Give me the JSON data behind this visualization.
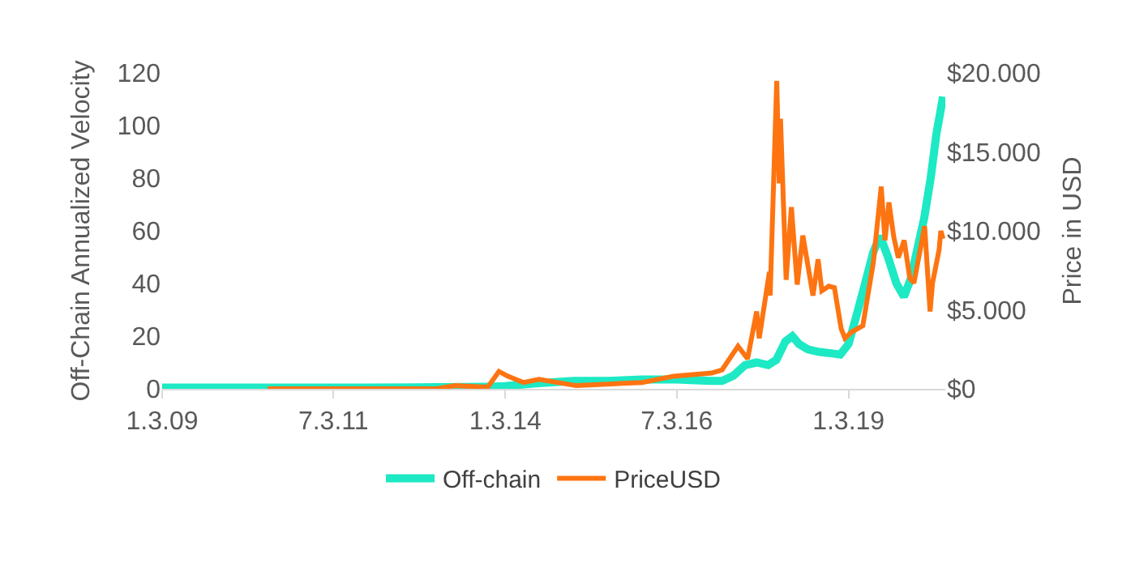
{
  "chart_data": {
    "type": "line",
    "ylabel": "Off-Chain Annualized Velocity",
    "y2label": "Price in USD",
    "xlim": [
      "2009-01-03",
      "2020-06-01"
    ],
    "xticks": [
      {
        "value": "2009-01-03",
        "label": "1.3.09"
      },
      {
        "value": "2011-07-03",
        "label": "7.3.11"
      },
      {
        "value": "2014-01-03",
        "label": "1.3.14"
      },
      {
        "value": "2016-07-03",
        "label": "7.3.16"
      },
      {
        "value": "2019-01-03",
        "label": "1.3.19"
      }
    ],
    "ylim": [
      0,
      120
    ],
    "yticks": [
      0,
      20,
      40,
      60,
      80,
      100,
      120
    ],
    "y2lim": [
      0,
      20000
    ],
    "y2ticks": [
      {
        "value": 0,
        "label": "$0"
      },
      {
        "value": 5000,
        "label": "$5.000"
      },
      {
        "value": 10000,
        "label": "$10.000"
      },
      {
        "value": 15000,
        "label": "$15.000"
      },
      {
        "value": 20000,
        "label": "$20.000"
      }
    ],
    "grid": false,
    "legend": "bottom",
    "marker": "none",
    "line_style": "solid",
    "series": [
      {
        "name": "Off-chain",
        "color": "#1de9c4",
        "x": [
          "2009-01-03",
          "2010-01-01",
          "2011-01-01",
          "2012-01-01",
          "2013-01-01",
          "2013-10-01",
          "2014-01-01",
          "2014-06-01",
          "2015-01-01",
          "2015-07-01",
          "2016-01-01",
          "2016-07-01",
          "2017-01-01",
          "2017-03-01",
          "2017-05-01",
          "2017-07-01",
          "2017-09-01",
          "2017-11-01",
          "2017-12-15",
          "2018-02-01",
          "2018-03-10",
          "2018-04-15",
          "2018-06-01",
          "2018-08-01",
          "2018-10-01",
          "2018-11-20",
          "2019-01-03",
          "2019-02-15",
          "2019-04-01",
          "2019-05-15",
          "2019-06-20",
          "2019-08-01",
          "2019-09-15",
          "2019-10-25",
          "2019-12-01",
          "2020-01-10",
          "2020-02-10",
          "2020-03-15",
          "2020-04-15",
          "2020-05-20"
        ],
        "values": [
          0.5,
          0.5,
          0.5,
          0.5,
          0.6,
          0.8,
          1,
          2,
          3,
          3,
          3.5,
          3.5,
          3,
          3,
          5,
          9,
          10,
          9,
          11,
          18,
          20,
          17,
          15,
          14,
          13.5,
          13,
          17,
          28,
          40,
          52,
          58,
          50,
          40,
          35,
          42,
          55,
          65,
          80,
          97,
          111
        ]
      },
      {
        "name": "PriceUSD",
        "color": "#fd7411",
        "axis": "y2",
        "x": [
          "2010-07-18",
          "2011-01-01",
          "2011-06-08",
          "2012-01-01",
          "2013-01-01",
          "2013-04-10",
          "2013-10-01",
          "2013-11-30",
          "2014-01-15",
          "2014-04-10",
          "2014-07-01",
          "2015-01-15",
          "2015-07-01",
          "2016-01-01",
          "2016-06-17",
          "2017-01-05",
          "2017-03-01",
          "2017-05-25",
          "2017-07-15",
          "2017-09-01",
          "2017-09-15",
          "2017-11-08",
          "2017-11-12",
          "2017-12-17",
          "2017-12-30",
          "2018-01-06",
          "2018-02-05",
          "2018-03-05",
          "2018-04-05",
          "2018-05-05",
          "2018-06-28",
          "2018-07-25",
          "2018-08-14",
          "2018-09-20",
          "2018-10-20",
          "2018-11-25",
          "2018-12-15",
          "2019-01-20",
          "2019-03-20",
          "2019-05-15",
          "2019-06-26",
          "2019-07-16",
          "2019-08-06",
          "2019-09-01",
          "2019-09-25",
          "2019-10-26",
          "2019-11-25",
          "2019-12-17",
          "2020-02-12",
          "2020-03-12",
          "2020-03-25",
          "2020-04-29",
          "2020-05-08",
          "2020-05-20"
        ],
        "values": [
          0,
          0,
          0,
          0,
          0,
          200,
          100,
          1100,
          800,
          400,
          600,
          200,
          300,
          400,
          800,
          1000,
          1200,
          2700,
          1900,
          4900,
          3200,
          7400,
          5900,
          19500,
          13000,
          17100,
          6900,
          11500,
          6600,
          9700,
          5900,
          8200,
          6200,
          6500,
          6400,
          3800,
          3200,
          3600,
          4000,
          8000,
          12800,
          9400,
          11800,
          9600,
          8300,
          9400,
          7000,
          6700,
          10300,
          4900,
          6700,
          8800,
          10000,
          9500
        ]
      }
    ]
  }
}
